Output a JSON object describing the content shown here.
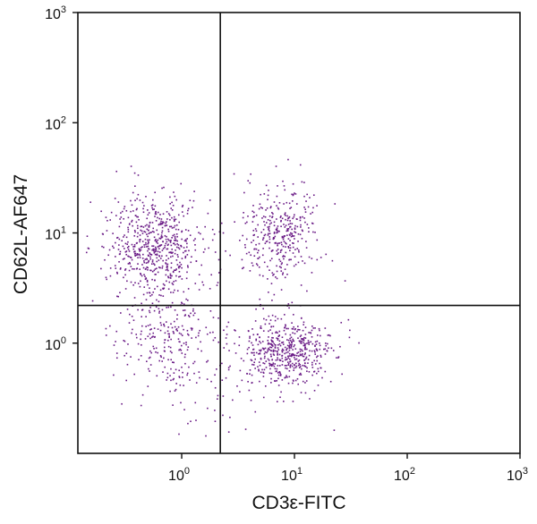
{
  "chart_data": {
    "type": "scatter",
    "title": "",
    "xlabel": "CD3ε-FITC",
    "ylabel": "CD62L-AF647",
    "x_scale": "log",
    "y_scale": "log",
    "xlim": [
      0.12,
      1000
    ],
    "ylim": [
      0.1,
      1000
    ],
    "x_ticks": [
      {
        "value": 1,
        "base": "10",
        "exp": "0"
      },
      {
        "value": 10,
        "base": "10",
        "exp": "1"
      },
      {
        "value": 100,
        "base": "10",
        "exp": "2"
      },
      {
        "value": 1000,
        "base": "10",
        "exp": "3"
      }
    ],
    "y_ticks": [
      {
        "value": 1,
        "base": "10",
        "exp": "0"
      },
      {
        "value": 10,
        "base": "10",
        "exp": "1"
      },
      {
        "value": 100,
        "base": "10",
        "exp": "2"
      },
      {
        "value": 1000,
        "base": "10",
        "exp": "3"
      }
    ],
    "quadrant_gates": {
      "x": 2.2,
      "y": 2.2
    },
    "grid": false,
    "legend": "none",
    "marker_color": "#6a1b86",
    "axis_color": "#111111",
    "clusters": [
      {
        "center": [
          0.58,
          7.5
        ],
        "spread": [
          0.21,
          0.24
        ],
        "count": 620,
        "description": "CD3ε- CD62L+ population"
      },
      {
        "center": [
          0.72,
          1.1
        ],
        "spread": [
          0.23,
          0.2
        ],
        "count": 210,
        "description": "CD3ε- CD62L- scattered events"
      },
      {
        "center": [
          8.5,
          0.85
        ],
        "spread": [
          0.2,
          0.16
        ],
        "count": 520,
        "description": "CD3ε+ CD62L- population"
      },
      {
        "center": [
          7.5,
          9.5
        ],
        "spread": [
          0.19,
          0.23
        ],
        "count": 360,
        "description": "CD3ε+ CD62L+ population"
      },
      {
        "center": [
          2.0,
          0.45
        ],
        "spread": [
          0.34,
          0.24
        ],
        "count": 80,
        "description": "sparse low events"
      }
    ]
  }
}
